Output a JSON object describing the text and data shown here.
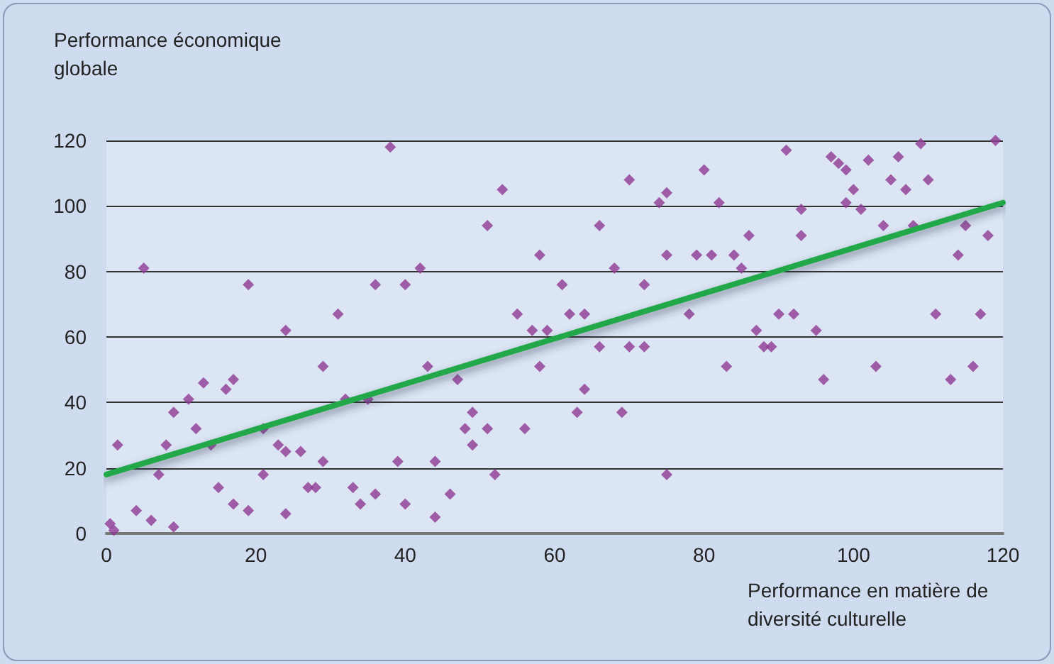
{
  "chart_data": {
    "type": "scatter",
    "ylabel": "Performance économique globale",
    "xlabel": "Performance en matière de diversité culturelle",
    "xlim": [
      0,
      120
    ],
    "xticks": [
      0,
      20,
      40,
      60,
      80,
      100,
      120
    ],
    "ylim": [
      0,
      120
    ],
    "yticks": [
      0,
      20,
      40,
      60,
      80,
      100,
      120
    ],
    "grid": "y",
    "marker": "diamond",
    "series": [
      {
        "color": "#8e3a93",
        "x": [
          0.5,
          1,
          1.5,
          4,
          5,
          6,
          7,
          8,
          9,
          9,
          11,
          12,
          13,
          14,
          15,
          16,
          17,
          17,
          19,
          19,
          21,
          21,
          23,
          24,
          24,
          24,
          26,
          27,
          28,
          29,
          29,
          31,
          32,
          33,
          34,
          35,
          36,
          36,
          38,
          39,
          40,
          40,
          42,
          43,
          44,
          44,
          46,
          47,
          48,
          49,
          49,
          51,
          51,
          52,
          53,
          55,
          56,
          57,
          58,
          58,
          59,
          61,
          62,
          63,
          64,
          64,
          66,
          66,
          68,
          69,
          70,
          70,
          72,
          72,
          74,
          75,
          75,
          75,
          78,
          79,
          80,
          81,
          82,
          83,
          84,
          85,
          86,
          87,
          88,
          89,
          90,
          91,
          92,
          93,
          93,
          95,
          96,
          97,
          98,
          99,
          99,
          100,
          101,
          102,
          103,
          104,
          105,
          106,
          107,
          108,
          109,
          110,
          111,
          113,
          114,
          115,
          116,
          117,
          118,
          119
        ],
        "values": [
          3,
          1,
          27,
          7,
          81,
          4,
          18,
          27,
          37,
          2,
          41,
          32,
          46,
          27,
          14,
          44,
          47,
          9,
          76,
          7,
          32,
          18,
          27,
          25,
          6,
          62,
          25,
          14,
          14,
          51,
          22,
          67,
          41,
          14,
          9,
          41,
          76,
          12,
          118,
          22,
          76,
          9,
          81,
          51,
          5,
          22,
          12,
          47,
          32,
          37,
          27,
          94,
          32,
          18,
          105,
          67,
          32,
          62,
          85,
          51,
          62,
          76,
          67,
          37,
          67,
          44,
          57,
          94,
          81,
          37,
          108,
          57,
          76,
          57,
          101,
          104,
          85,
          18,
          67,
          85,
          111,
          85,
          101,
          51,
          85,
          81,
          91,
          62,
          57,
          57,
          67,
          117,
          67,
          91,
          99,
          62,
          47,
          115,
          113,
          111,
          101,
          105,
          99,
          114,
          51,
          94,
          108,
          115,
          105,
          94,
          119,
          108,
          67,
          47,
          85,
          94,
          51,
          67,
          91,
          120
        ]
      },
      {
        "type": "line",
        "color": "#22a84a",
        "marker": "none",
        "x": [
          0,
          120
        ],
        "values": [
          18,
          101
        ]
      }
    ]
  }
}
